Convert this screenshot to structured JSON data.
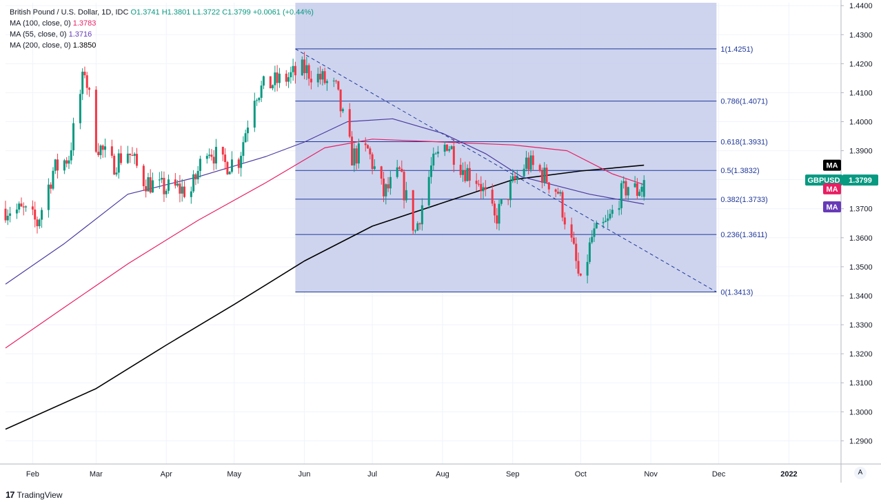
{
  "legend": {
    "title": "British Pound / U.S. Dollar, 1D, IDC",
    "ohlc": "O1.3741  H1.3801  L1.3722  C1.3799",
    "change": "+0.0061 (+0.44%)",
    "ma100_label": "MA (100, close, 0)",
    "ma100_value": "1.3783",
    "ma55_label": "MA (55, close, 0)",
    "ma55_value": "1.3716",
    "ma200_label": "MA (200, close, 0)",
    "ma200_value": "1.3850"
  },
  "footer": {
    "brand": "TradingView",
    "auto_scale": "A"
  },
  "colors": {
    "up": "#089981",
    "down": "#f23645",
    "ma100": "#e91e63",
    "ma55": "#4a3aa0",
    "ma200": "#000000",
    "fib": "#1e3799",
    "fib_fill": "#c5cdeb"
  },
  "chart_data": {
    "type": "candlestick",
    "symbol": "GBPUSD",
    "last_price": "1.3799",
    "ylim": [
      1.282,
      1.441
    ],
    "y_ticks": [
      "1.4400",
      "1.4300",
      "1.4200",
      "1.4100",
      "1.4000",
      "1.3900",
      "1.3800",
      "1.3700",
      "1.3600",
      "1.3500",
      "1.3400",
      "1.3300",
      "1.3200",
      "1.3100",
      "1.3000",
      "1.2900"
    ],
    "x_ticks": [
      {
        "label": "Feb",
        "date": "2021-02-01"
      },
      {
        "label": "Mar",
        "date": "2021-03-01"
      },
      {
        "label": "Apr",
        "date": "2021-04-01"
      },
      {
        "label": "May",
        "date": "2021-05-01"
      },
      {
        "label": "Jun",
        "date": "2021-06-01"
      },
      {
        "label": "Jul",
        "date": "2021-07-01"
      },
      {
        "label": "Aug",
        "date": "2021-08-01"
      },
      {
        "label": "Sep",
        "date": "2021-09-01"
      },
      {
        "label": "Oct",
        "date": "2021-10-01"
      },
      {
        "label": "Nov",
        "date": "2021-11-01"
      },
      {
        "label": "Dec",
        "date": "2021-12-01"
      },
      {
        "label": "2022",
        "date": "2022-01-01"
      }
    ],
    "x_range": [
      "2021-01-20",
      "2022-01-24"
    ],
    "price_path": [
      [
        "2021-01-20",
        1.37
      ],
      [
        "2021-01-28",
        1.369
      ],
      [
        "2021-02-03",
        1.365
      ],
      [
        "2021-02-10",
        1.383
      ],
      [
        "2021-02-17",
        1.388
      ],
      [
        "2021-02-24",
        1.418
      ],
      [
        "2021-03-01",
        1.393
      ],
      [
        "2021-03-08",
        1.385
      ],
      [
        "2021-03-15",
        1.39
      ],
      [
        "2021-03-22",
        1.38
      ],
      [
        "2021-03-29",
        1.377
      ],
      [
        "2021-04-05",
        1.377
      ],
      [
        "2021-04-12",
        1.376
      ],
      [
        "2021-04-19",
        1.392
      ],
      [
        "2021-04-26",
        1.385
      ],
      [
        "2021-05-03",
        1.387
      ],
      [
        "2021-05-10",
        1.41
      ],
      [
        "2021-05-17",
        1.413
      ],
      [
        "2021-05-24",
        1.415
      ],
      [
        "2021-06-01",
        1.418
      ],
      [
        "2021-06-08",
        1.415
      ],
      [
        "2021-06-15",
        1.411
      ],
      [
        "2021-06-22",
        1.388
      ],
      [
        "2021-06-29",
        1.39
      ],
      [
        "2021-07-06",
        1.375
      ],
      [
        "2021-07-13",
        1.382
      ],
      [
        "2021-07-20",
        1.362
      ],
      [
        "2021-07-27",
        1.384
      ],
      [
        "2021-08-03",
        1.393
      ],
      [
        "2021-08-10",
        1.384
      ],
      [
        "2021-08-17",
        1.38
      ],
      [
        "2021-08-24",
        1.366
      ],
      [
        "2021-08-31",
        1.377
      ],
      [
        "2021-09-07",
        1.386
      ],
      [
        "2021-09-14",
        1.382
      ],
      [
        "2021-09-21",
        1.376
      ],
      [
        "2021-09-28",
        1.355
      ],
      [
        "2021-10-01",
        1.343
      ],
      [
        "2021-10-06",
        1.36
      ],
      [
        "2021-10-13",
        1.365
      ],
      [
        "2021-10-18",
        1.374
      ],
      [
        "2021-10-22",
        1.378
      ],
      [
        "2021-10-26",
        1.376
      ],
      [
        "2021-10-29",
        1.3799
      ]
    ],
    "ma55": [
      [
        "2021-01-20",
        1.344
      ],
      [
        "2021-02-15",
        1.358
      ],
      [
        "2021-03-15",
        1.375
      ],
      [
        "2021-04-15",
        1.381
      ],
      [
        "2021-05-15",
        1.388
      ],
      [
        "2021-06-01",
        1.393
      ],
      [
        "2021-06-20",
        1.4
      ],
      [
        "2021-07-10",
        1.401
      ],
      [
        "2021-08-01",
        1.396
      ],
      [
        "2021-08-20",
        1.389
      ],
      [
        "2021-09-05",
        1.381
      ],
      [
        "2021-09-20",
        1.378
      ],
      [
        "2021-10-05",
        1.375
      ],
      [
        "2021-10-29",
        1.3716
      ]
    ],
    "ma100": [
      [
        "2021-01-20",
        1.322
      ],
      [
        "2021-02-15",
        1.336
      ],
      [
        "2021-03-15",
        1.351
      ],
      [
        "2021-04-15",
        1.366
      ],
      [
        "2021-05-15",
        1.379
      ],
      [
        "2021-06-10",
        1.391
      ],
      [
        "2021-07-01",
        1.394
      ],
      [
        "2021-08-01",
        1.393
      ],
      [
        "2021-09-01",
        1.392
      ],
      [
        "2021-09-25",
        1.39
      ],
      [
        "2021-10-15",
        1.382
      ],
      [
        "2021-10-29",
        1.3783
      ]
    ],
    "ma200": [
      [
        "2021-01-20",
        1.294
      ],
      [
        "2021-03-01",
        1.308
      ],
      [
        "2021-04-01",
        1.323
      ],
      [
        "2021-05-01",
        1.337
      ],
      [
        "2021-06-01",
        1.352
      ],
      [
        "2021-07-01",
        1.364
      ],
      [
        "2021-08-01",
        1.372
      ],
      [
        "2021-09-01",
        1.38
      ],
      [
        "2021-10-01",
        1.383
      ],
      [
        "2021-10-29",
        1.385
      ]
    ],
    "fibonacci": {
      "start_date": "2021-05-28",
      "end_date": "2021-11-30",
      "levels": [
        {
          "label": "1(1.4251)",
          "value": 1.4251
        },
        {
          "label": "0.786(1.4071)",
          "value": 1.4071
        },
        {
          "label": "0.618(1.3931)",
          "value": 1.3931
        },
        {
          "label": "0.5(1.3832)",
          "value": 1.3832
        },
        {
          "label": "0.382(1.3733)",
          "value": 1.3733
        },
        {
          "label": "0.236(1.3611)",
          "value": 1.3611
        },
        {
          "label": "0(1.3413)",
          "value": 1.3413
        }
      ]
    },
    "trend_line": [
      [
        "2021-05-28",
        1.4251
      ],
      [
        "2021-11-30",
        1.3413
      ]
    ],
    "badges": [
      {
        "text": "MA",
        "value": 1.385,
        "color": "#000000"
      },
      {
        "text": "GBPUSD",
        "value": 1.3799,
        "color": "#089981"
      },
      {
        "text": "1.3799",
        "value": 1.3799,
        "color": "#089981"
      },
      {
        "text": "MA",
        "value": 1.3783,
        "color": "#e91e63"
      },
      {
        "text": "MA",
        "value": 1.3716,
        "color": "#673ab7"
      }
    ]
  }
}
